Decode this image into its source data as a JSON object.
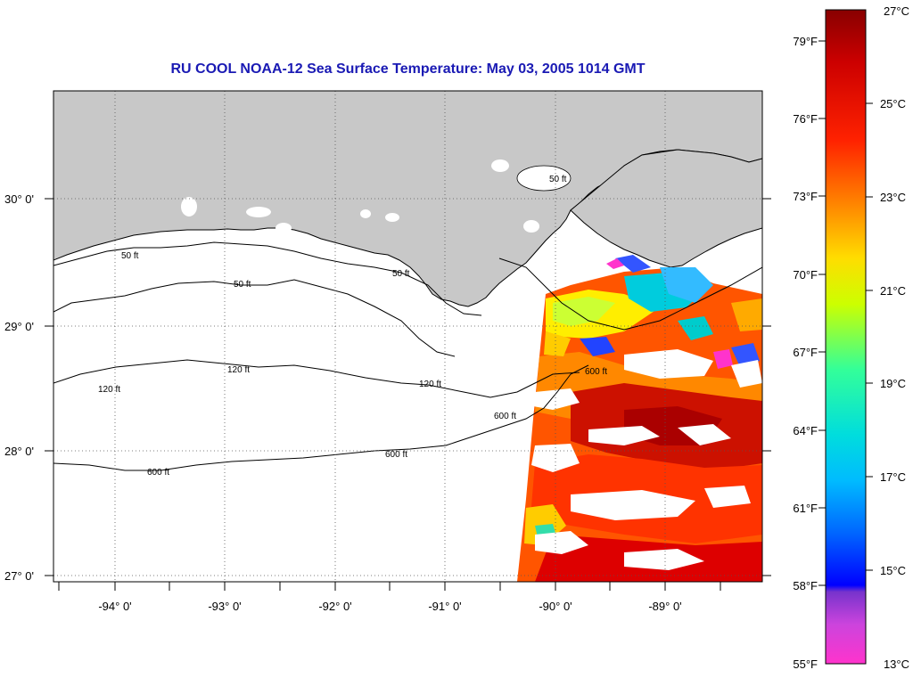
{
  "title": "RU COOL  NOAA-12  Sea Surface Temperature:  May 03, 2005 1014 GMT",
  "longitude_labels": [
    "-94° 0'",
    "-93° 0'",
    "-92° 0'",
    "-91° 0'",
    "-90° 0'",
    "-89° 0'"
  ],
  "latitude_labels": [
    "30° 0'",
    "29° 0'",
    "28° 0'",
    "27° 0'"
  ],
  "contour_labels": [
    "50 ft",
    "50 ft",
    "50 ft",
    "50 ft",
    "120 ft",
    "120 ft",
    "120 ft",
    "600 ft",
    "600 ft",
    "600 ft",
    "600 ft"
  ],
  "colorbar": {
    "fahrenheit_labels": [
      "79°F",
      "76°F",
      "73°F",
      "70°F",
      "67°F",
      "64°F",
      "61°F",
      "58°F",
      "55°F"
    ],
    "celsius_labels": [
      "27°C",
      "25°C",
      "23°C",
      "21°C",
      "19°C",
      "17°C",
      "15°C",
      "13°C"
    ],
    "colors": [
      "#ff33cc",
      "#7733cc",
      "#0000ff",
      "#0099ff",
      "#00dddd",
      "#33ff99",
      "#ccff00",
      "#ffdd00",
      "#ff8800",
      "#ff2200",
      "#cc0000",
      "#990000"
    ]
  }
}
